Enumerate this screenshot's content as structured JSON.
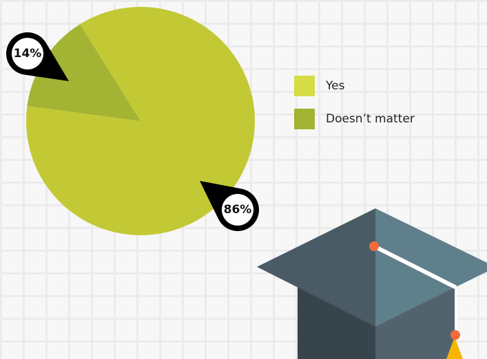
{
  "chart_data": {
    "type": "pie",
    "categories": [
      "Yes",
      "Doesn’t matter"
    ],
    "values": [
      86,
      14
    ],
    "value_labels": [
      "86%",
      "14%"
    ],
    "colors": [
      "#c2c934",
      "#a3b334"
    ],
    "legend": "right"
  }
}
